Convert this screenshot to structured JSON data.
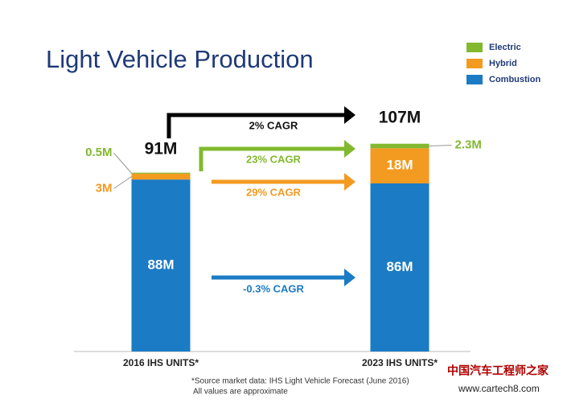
{
  "chart_data": {
    "type": "stacked_bar",
    "title": "Light Vehicle Production",
    "categories": [
      "2016 IHS UNITS*",
      "2023 IHS UNITS*"
    ],
    "series": [
      {
        "name": "Combustion",
        "color": "#1b7bc4",
        "values": [
          88,
          86
        ],
        "value_labels": [
          "88M",
          "86M"
        ]
      },
      {
        "name": "Hybrid",
        "color": "#f39a21",
        "values": [
          3,
          18
        ],
        "value_labels": [
          "3M",
          "18M"
        ]
      },
      {
        "name": "Electric",
        "color": "#82b92f",
        "values": [
          0.5,
          2.3
        ],
        "value_labels": [
          "0.5M",
          "2.3M"
        ]
      }
    ],
    "totals": {
      "values": [
        91,
        107
      ],
      "value_labels": [
        "91M",
        "107M"
      ]
    },
    "annotations": [
      {
        "label": "2% CAGR",
        "color": "#000000"
      },
      {
        "label": "23% CAGR",
        "color": "#82b92f"
      },
      {
        "label": "29% CAGR",
        "color": "#f39a21"
      },
      {
        "label": "-0.3% CAGR",
        "color": "#1b7bc4"
      }
    ],
    "footnotes": [
      "*Source market data: IHS Light Vehicle Forecast (June 2016)",
      "All values are approximate"
    ],
    "watermark": [
      "中国汽车工程师之家",
      "www.cartech8.com"
    ]
  }
}
